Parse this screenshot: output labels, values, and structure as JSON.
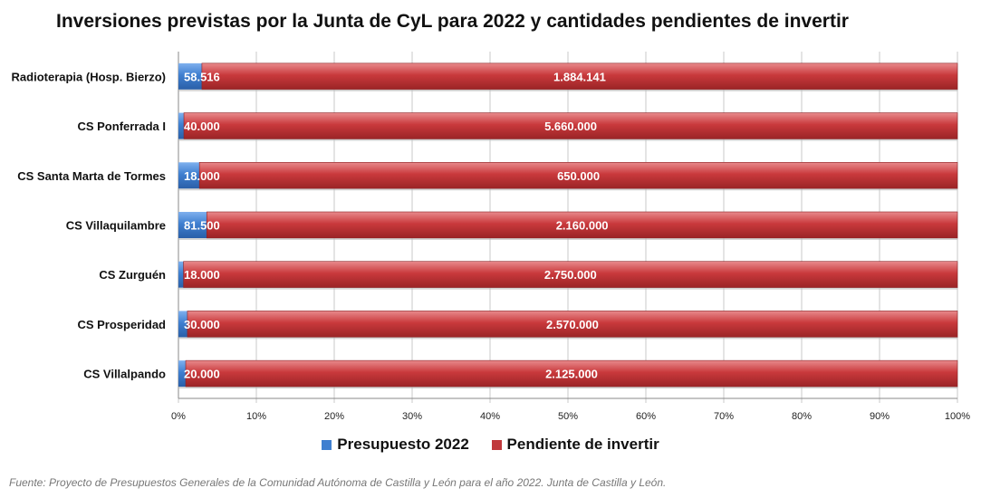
{
  "chart_data": {
    "type": "bar",
    "orientation": "horizontal",
    "stacked": "percent",
    "title": "Inversiones previstas por la Junta de CyL para 2022 y cantidades pendientes de invertir",
    "categories": [
      "Radioterapia (Hosp. Bierzo)",
      "CS Ponferrada I",
      "CS Santa Marta de Tormes",
      "CS Villaquilambre",
      "CS Zurguén",
      "CS Prosperidad",
      "CS Villalpando"
    ],
    "series": [
      {
        "name": "Presupuesto 2022",
        "color": "#3f7fd0",
        "values": [
          58516,
          40000,
          18000,
          81500,
          18000,
          30000,
          20000
        ],
        "labels": [
          "58.516",
          "40.000",
          "18.000",
          "81.500",
          "18.000",
          "30.000",
          "20.000"
        ]
      },
      {
        "name": "Pendiente de invertir",
        "color": "#c0393c",
        "values": [
          1884141,
          5660000,
          650000,
          2160000,
          2750000,
          2570000,
          2125000
        ],
        "labels": [
          "1.884.141",
          "5.660.000",
          "650.000",
          "2.160.000",
          "2.750.000",
          "2.570.000",
          "2.125.000"
        ]
      }
    ],
    "xticks": [
      "0%",
      "10%",
      "20%",
      "30%",
      "40%",
      "50%",
      "60%",
      "70%",
      "80%",
      "90%",
      "100%"
    ],
    "xlim": [
      0,
      100
    ],
    "grid": true,
    "legend": "bottom"
  },
  "source": "Fuente: Proyecto de Presupuestos Generales de la Comunidad Autónoma de Castilla y León para el año 2022. Junta de Castilla y León."
}
